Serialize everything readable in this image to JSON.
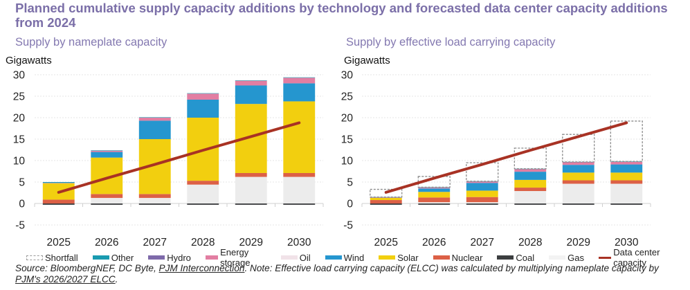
{
  "title": "Planned cumulative supply capacity additions by technology and forecasted data center capacity additions from 2024",
  "colors": {
    "Shortfall": "#ffffff",
    "Other": "#1a9bb0",
    "Hydro": "#7e6aaa",
    "Energy storage": "#e27ea2",
    "Oil": "#f1e2e8",
    "Wind": "#2596cf",
    "Solar": "#f2cf0f",
    "Nuclear": "#dc6046",
    "Coal": "#3c3e40",
    "Gas": "#ececec",
    "Data center capacity": "#a83224"
  },
  "legend": [
    {
      "name": "Shortfall",
      "style": "dashed"
    },
    {
      "name": "Other",
      "style": "bar"
    },
    {
      "name": "Hydro",
      "style": "bar"
    },
    {
      "name": "Energy storage",
      "style": "bar"
    },
    {
      "name": "Oil",
      "style": "bar"
    },
    {
      "name": "Wind",
      "style": "bar"
    },
    {
      "name": "Solar",
      "style": "bar"
    },
    {
      "name": "Nuclear",
      "style": "bar"
    },
    {
      "name": "Coal",
      "style": "bar"
    },
    {
      "name": "Gas",
      "style": "bar"
    },
    {
      "name": "Data center capacity",
      "style": "line"
    }
  ],
  "source": {
    "prefix": "Source: BloombergNEF, DC Byte, ",
    "link1": "PJM Interconnection",
    "middle": ". Note: Effective load carrying capacity (ELCC) was calculated by multiplying nameplate capacity by ",
    "link2": "PJM's 2026/2027 ELCC",
    "suffix": "."
  },
  "chart_data": [
    {
      "type": "bar",
      "stacked": true,
      "title": "Supply by nameplate capacity",
      "ylabel": "Gigawatts",
      "xlabel": "",
      "ylim": [
        -5,
        30
      ],
      "yticks": [
        30,
        25,
        20,
        15,
        10,
        5,
        0,
        -5
      ],
      "grid": true,
      "categories": [
        "2025",
        "2026",
        "2027",
        "2028",
        "2029",
        "2030"
      ],
      "series": [
        {
          "name": "Coal",
          "values": [
            -0.3,
            -0.3,
            -0.3,
            -0.3,
            -0.3,
            -0.3
          ]
        },
        {
          "name": "Gas",
          "values": [
            0.0,
            1.3,
            1.3,
            4.4,
            6.2,
            6.2
          ]
        },
        {
          "name": "Nuclear",
          "values": [
            0.9,
            0.9,
            0.9,
            0.9,
            0.9,
            0.9
          ]
        },
        {
          "name": "Solar",
          "values": [
            3.8,
            8.5,
            12.8,
            14.7,
            16.1,
            16.7
          ]
        },
        {
          "name": "Wind",
          "values": [
            0.0,
            1.3,
            4.3,
            4.2,
            4.3,
            4.2
          ]
        },
        {
          "name": "Oil",
          "values": [
            0,
            0,
            0,
            0,
            0,
            0
          ]
        },
        {
          "name": "Energy storage",
          "values": [
            0.1,
            0.3,
            0.7,
            1.4,
            1.1,
            1.3
          ]
        },
        {
          "name": "Hydro",
          "values": [
            0,
            0,
            0,
            0,
            0,
            0
          ]
        },
        {
          "name": "Other",
          "values": [
            0.2,
            0.1,
            0.1,
            0.1,
            0.1,
            0.1
          ]
        }
      ],
      "line": {
        "name": "Data center capacity",
        "values": [
          2.6,
          5.9,
          9.1,
          12.4,
          15.6,
          18.8
        ]
      }
    },
    {
      "type": "bar",
      "stacked": true,
      "title": "Supply by effective load carrying capacity",
      "ylabel": "Gigawatts",
      "xlabel": "",
      "ylim": [
        -5,
        30
      ],
      "yticks": [
        30,
        25,
        20,
        15,
        10,
        5,
        0,
        -5
      ],
      "grid": true,
      "categories": [
        "2025",
        "2026",
        "2027",
        "2028",
        "2029",
        "2030"
      ],
      "series": [
        {
          "name": "Coal",
          "values": [
            -0.3,
            -0.3,
            -0.3,
            -0.3,
            -0.3,
            -0.3
          ]
        },
        {
          "name": "Gas",
          "values": [
            0.0,
            0.3,
            0.3,
            2.9,
            4.6,
            4.6
          ]
        },
        {
          "name": "Nuclear",
          "values": [
            0.8,
            1.1,
            1.2,
            0.8,
            0.8,
            0.8
          ]
        },
        {
          "name": "Solar",
          "values": [
            0.5,
            1.3,
            1.5,
            1.8,
            1.8,
            1.8
          ]
        },
        {
          "name": "Wind",
          "values": [
            0.0,
            0.8,
            1.8,
            1.9,
            1.8,
            1.9
          ]
        },
        {
          "name": "Oil",
          "values": [
            0,
            0,
            0,
            0,
            0,
            0
          ]
        },
        {
          "name": "Energy storage",
          "values": [
            0.1,
            0.2,
            0.3,
            0.6,
            0.6,
            0.6
          ]
        },
        {
          "name": "Hydro",
          "values": [
            0,
            0,
            0,
            0,
            0,
            0
          ]
        },
        {
          "name": "Other",
          "values": [
            0.1,
            0.1,
            0.1,
            0.1,
            0.1,
            0.1
          ]
        },
        {
          "name": "Shortfall",
          "values": [
            1.8,
            2.5,
            4.3,
            4.8,
            6.4,
            9.4
          ]
        }
      ],
      "line": {
        "name": "Data center capacity",
        "values": [
          2.6,
          5.9,
          9.1,
          12.4,
          15.6,
          18.8
        ]
      }
    }
  ]
}
